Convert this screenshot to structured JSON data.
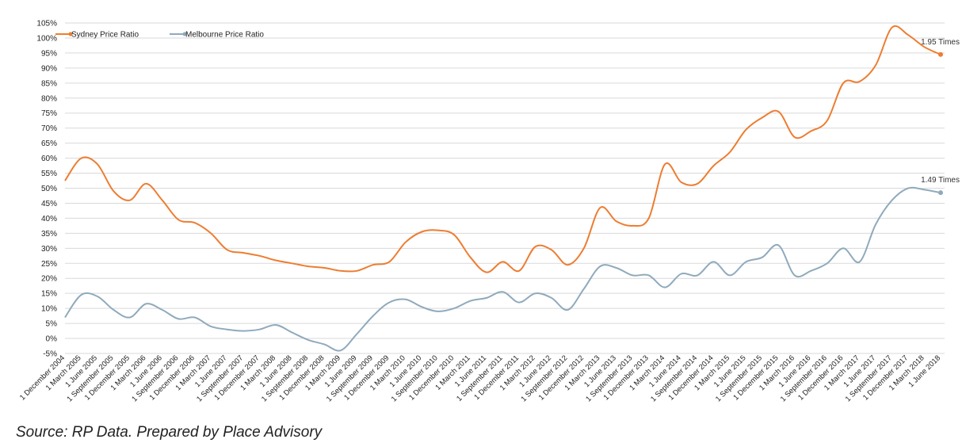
{
  "source_note": "Source: RP Data. Prepared by Place Advisory",
  "chart_data": {
    "type": "line",
    "title": "",
    "xlabel": "",
    "ylabel": "",
    "y_unit": "%",
    "ylim": [
      -5,
      105
    ],
    "y_ticks": [
      -5,
      0,
      5,
      10,
      15,
      20,
      25,
      30,
      35,
      40,
      45,
      50,
      55,
      60,
      65,
      70,
      75,
      80,
      85,
      90,
      95,
      100,
      105
    ],
    "y_tick_labels": [
      "-5%",
      "0%",
      "5%",
      "10%",
      "15%",
      "20%",
      "25%",
      "30%",
      "35%",
      "40%",
      "45%",
      "50%",
      "55%",
      "60%",
      "65%",
      "70%",
      "75%",
      "80%",
      "85%",
      "90%",
      "95%",
      "100%",
      "105%"
    ],
    "grid": true,
    "legend_position": "top-left",
    "categories": [
      "1 December 2004",
      "1 March 2005",
      "1 June 2005",
      "1 September 2005",
      "1 December 2005",
      "1 March 2006",
      "1 June 2006",
      "1 September 2006",
      "1 December 2006",
      "1 March 2007",
      "1 June 2007",
      "1 September 2007",
      "1 December 2007",
      "1 March 2008",
      "1 June 2008",
      "1 September 2008",
      "1 December 2008",
      "1 March 2009",
      "1 June 2009",
      "1 September 2009",
      "1 December 2009",
      "1 March 2010",
      "1 June 2010",
      "1 September 2010",
      "1 December 2010",
      "1 March 2011",
      "1 June 2011",
      "1 September 2011",
      "1 December 2011",
      "1 March 2012",
      "1 June 2012",
      "1 September 2012",
      "1 December 2012",
      "1 March 2013",
      "1 June 2013",
      "1 September 2013",
      "1 December 2013",
      "1 March 2014",
      "1 June 2014",
      "1 September 2014",
      "1 December 2014",
      "1 March 2015",
      "1 June 2015",
      "1 September 2015",
      "1 December 2015",
      "1 March 2016",
      "1 June 2016",
      "1 September 2016",
      "1 December 2016",
      "1 March 2017",
      "1 June 2017",
      "1 September 2017",
      "1 December 2017",
      "1 March 2018",
      "1 June 2018"
    ],
    "series": [
      {
        "name": "Sydney Price Ratio",
        "color": "#ED7D31",
        "end_label": "1.95 Times",
        "values": [
          52.5,
          60,
          58,
          49,
          46,
          51.5,
          46,
          39.5,
          38.5,
          35,
          29.5,
          28.5,
          27.5,
          26,
          25,
          24,
          23.5,
          22.5,
          22.5,
          24.5,
          25.5,
          32,
          35.5,
          36,
          34.5,
          27,
          22,
          25.5,
          22.5,
          30.5,
          29.5,
          24.5,
          30,
          43.5,
          39,
          37.5,
          40,
          58,
          52,
          51.5,
          57.5,
          62,
          69.5,
          73.5,
          75.5,
          67,
          69,
          72.5,
          85,
          85.5,
          91,
          103.5,
          101,
          97,
          94.5
        ]
      },
      {
        "name": "Melbourne Price Ratio",
        "color": "#8FAABC",
        "end_label": "1.49 Times",
        "values": [
          7,
          14.5,
          14,
          9.5,
          7,
          11.5,
          9.5,
          6.5,
          7,
          4,
          3,
          2.5,
          3,
          4.5,
          2,
          -0.5,
          -2,
          -4,
          1.5,
          7.5,
          12,
          13,
          10.5,
          9,
          10,
          12.5,
          13.5,
          15.5,
          12,
          15,
          13.5,
          9.5,
          16.5,
          24,
          23.5,
          21,
          21,
          17,
          21.5,
          21,
          25.5,
          21,
          25.5,
          27,
          31,
          21,
          22.5,
          25,
          30,
          25.5,
          38,
          46,
          50,
          49.5,
          48.5
        ]
      }
    ]
  }
}
